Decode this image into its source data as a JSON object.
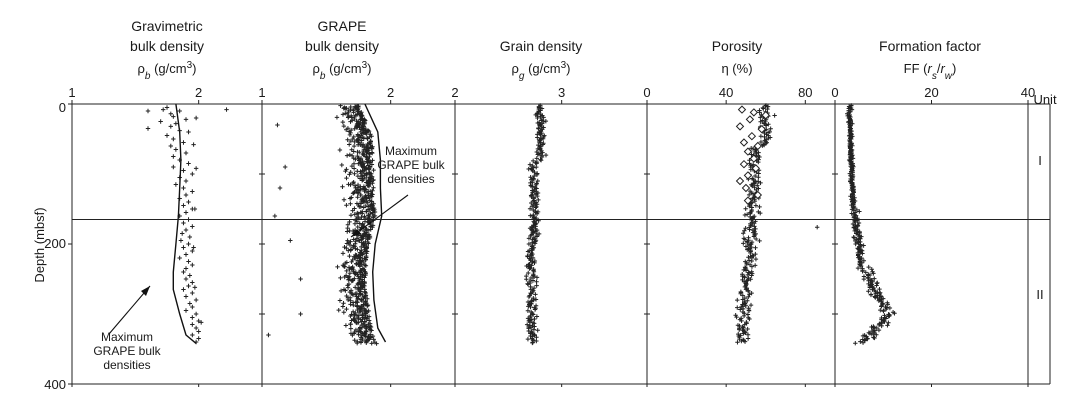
{
  "figure": {
    "y_axis_label": "Depth (mbsf)",
    "y_ticks": [
      "0",
      "200",
      "400"
    ],
    "unit_label": "Unit",
    "units": [
      {
        "label": "I",
        "from_depth": 0,
        "to_depth": 165
      },
      {
        "label": "II",
        "from_depth": 165,
        "to_depth": 400
      }
    ],
    "unit_boundary_depth": 165,
    "colors": {
      "ink": "#1a1a1a",
      "background": "#ffffff"
    }
  },
  "chart_data": [
    {
      "type": "scatter",
      "title": [
        "Gravimetric",
        "bulk density"
      ],
      "xlabel": "ρb (g/cm3)",
      "x_ticks": [
        "1",
        "2"
      ],
      "xlim": [
        1,
        2.5
      ],
      "ylim": [
        0,
        400
      ],
      "marker": "plus",
      "samples": [
        [
          1.75,
          5
        ],
        [
          1.72,
          8
        ],
        [
          1.85,
          10
        ],
        [
          1.78,
          14
        ],
        [
          1.8,
          18
        ],
        [
          1.9,
          22
        ],
        [
          1.7,
          25
        ],
        [
          1.82,
          28
        ],
        [
          1.78,
          32
        ],
        [
          1.6,
          35
        ],
        [
          1.85,
          38
        ],
        [
          1.92,
          40
        ],
        [
          1.75,
          45
        ],
        [
          1.8,
          50
        ],
        [
          1.88,
          55
        ],
        [
          1.78,
          60
        ],
        [
          1.82,
          65
        ],
        [
          1.9,
          70
        ],
        [
          1.8,
          75
        ],
        [
          1.85,
          80
        ],
        [
          1.92,
          85
        ],
        [
          1.8,
          90
        ],
        [
          1.88,
          95
        ],
        [
          1.95,
          100
        ],
        [
          1.85,
          105
        ],
        [
          1.9,
          110
        ],
        [
          1.82,
          115
        ],
        [
          1.88,
          120
        ],
        [
          1.95,
          125
        ],
        [
          1.9,
          130
        ],
        [
          1.85,
          135
        ],
        [
          1.92,
          140
        ],
        [
          1.88,
          145
        ],
        [
          1.95,
          150
        ],
        [
          1.9,
          155
        ],
        [
          1.85,
          160
        ],
        [
          1.92,
          165
        ],
        [
          1.88,
          170
        ],
        [
          1.95,
          175
        ],
        [
          1.9,
          180
        ],
        [
          1.87,
          185
        ],
        [
          1.93,
          190
        ],
        [
          1.86,
          195
        ],
        [
          1.92,
          200
        ],
        [
          1.88,
          205
        ],
        [
          1.95,
          210
        ],
        [
          1.9,
          215
        ],
        [
          1.85,
          220
        ],
        [
          1.92,
          225
        ],
        [
          1.95,
          230
        ],
        [
          1.9,
          235
        ],
        [
          1.88,
          240
        ],
        [
          1.93,
          245
        ],
        [
          1.9,
          250
        ],
        [
          1.95,
          255
        ],
        [
          1.92,
          260
        ],
        [
          1.88,
          265
        ],
        [
          1.95,
          270
        ],
        [
          1.9,
          275
        ],
        [
          1.98,
          280
        ],
        [
          1.93,
          285
        ],
        [
          1.95,
          290
        ],
        [
          1.9,
          295
        ],
        [
          1.98,
          300
        ],
        [
          1.95,
          305
        ],
        [
          2.0,
          310
        ],
        [
          1.95,
          315
        ],
        [
          1.98,
          320
        ],
        [
          2.0,
          325
        ],
        [
          1.95,
          330
        ],
        [
          2.0,
          335
        ],
        [
          1.98,
          340
        ],
        [
          2.22,
          8
        ],
        [
          1.6,
          10
        ],
        [
          1.98,
          20
        ],
        [
          1.96,
          58
        ],
        [
          1.98,
          92
        ],
        [
          1.97,
          150
        ],
        [
          1.96,
          205
        ],
        [
          1.97,
          262
        ],
        [
          2.02,
          312
        ]
      ],
      "samples_note": "",
      "curve": {
        "name": "Maximum GRAPE bulk densities",
        "points": [
          [
            1.82,
            0
          ],
          [
            1.85,
            40
          ],
          [
            1.86,
            80
          ],
          [
            1.85,
            120
          ],
          [
            1.84,
            160
          ],
          [
            1.82,
            200
          ],
          [
            1.8,
            240
          ],
          [
            1.8,
            265
          ],
          [
            1.85,
            300
          ],
          [
            1.9,
            330
          ],
          [
            1.98,
            342
          ]
        ]
      },
      "annotation": [
        "Maximum",
        "GRAPE bulk",
        "densities"
      ]
    },
    {
      "type": "scatter",
      "title": [
        "GRAPE",
        "bulk density"
      ],
      "xlabel": "ρb (g/cm3)",
      "x_ticks": [
        "1",
        "2"
      ],
      "xlim": [
        1,
        2.5
      ],
      "ylim": [
        0,
        400
      ],
      "marker": "plus",
      "curve": {
        "name": "Maximum GRAPE bulk densities",
        "points": [
          [
            1.8,
            0
          ],
          [
            1.9,
            40
          ],
          [
            1.92,
            80
          ],
          [
            1.92,
            120
          ],
          [
            1.93,
            160
          ],
          [
            1.88,
            200
          ],
          [
            1.86,
            240
          ],
          [
            1.87,
            280
          ],
          [
            1.9,
            320
          ],
          [
            1.96,
            340
          ]
        ]
      },
      "annotation": [
        "Maximum",
        "GRAPE bulk",
        "densities"
      ]
    },
    {
      "type": "scatter",
      "title": [
        "Grain density"
      ],
      "xlabel": "ρg (g/cm3)",
      "x_ticks": [
        "2",
        "3"
      ],
      "xlim": [
        2,
        3.8
      ],
      "ylim": [
        0,
        400
      ],
      "marker": "plus"
    },
    {
      "type": "scatter",
      "title": [
        "Porosity"
      ],
      "xlabel": "η (%)",
      "x_ticks": [
        "0",
        "40",
        "80"
      ],
      "xlim": [
        0,
        95
      ],
      "ylim": [
        0,
        400
      ],
      "marker": "plus",
      "secondary_marker": "diamond"
    },
    {
      "type": "scatter",
      "title": [
        "Formation factor"
      ],
      "xlabel": "FF (rs/rw)",
      "x_ticks": [
        "0",
        "20",
        "40"
      ],
      "xlim": [
        0,
        40
      ],
      "ylim": [
        0,
        400
      ],
      "marker": "plus"
    }
  ]
}
